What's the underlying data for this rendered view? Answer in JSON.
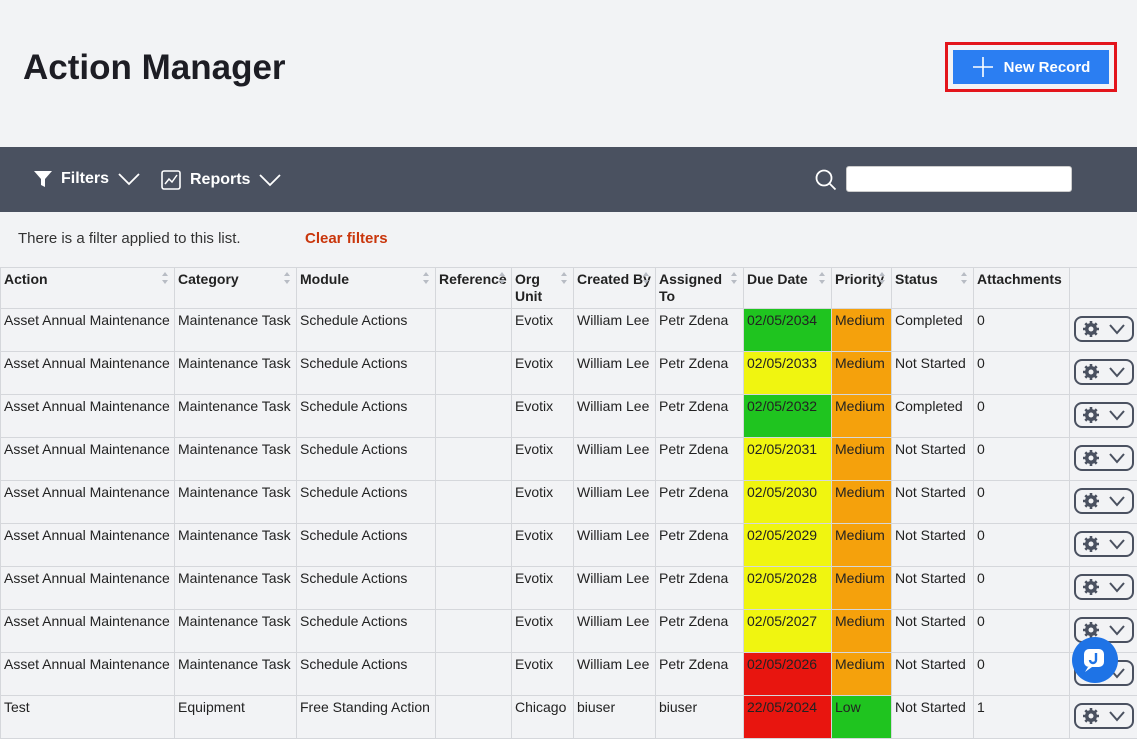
{
  "header": {
    "title": "Action Manager",
    "new_button": "New Record"
  },
  "toolbar": {
    "filters": "Filters",
    "reports": "Reports"
  },
  "filter_notice": {
    "text": "There is a filter applied to this list.",
    "clear": "Clear filters"
  },
  "table": {
    "columns": [
      "Action",
      "Category",
      "Module",
      "Reference",
      "Org Unit",
      "Created By",
      "Assigned To",
      "Due Date",
      "Priority",
      "Status",
      "Attachments"
    ],
    "rows": [
      [
        "Asset Annual Maintenance",
        "Maintenance Task",
        "Schedule Actions",
        null,
        "Evotix",
        "William Lee",
        "Petr Zdena",
        "02/05/2034",
        "Medium",
        "Completed",
        0
      ],
      [
        "Asset Annual Maintenance",
        "Maintenance Task",
        "Schedule Actions",
        null,
        "Evotix",
        "William Lee",
        "Petr Zdena",
        "02/05/2033",
        "Medium",
        "Not Started",
        0
      ],
      [
        "Asset Annual Maintenance",
        "Maintenance Task",
        "Schedule Actions",
        null,
        "Evotix",
        "William Lee",
        "Petr Zdena",
        "02/05/2032",
        "Medium",
        "Completed",
        0
      ],
      [
        "Asset Annual Maintenance",
        "Maintenance Task",
        "Schedule Actions",
        null,
        "Evotix",
        "William Lee",
        "Petr Zdena",
        "02/05/2031",
        "Medium",
        "Not Started",
        0
      ],
      [
        "Asset Annual Maintenance",
        "Maintenance Task",
        "Schedule Actions",
        null,
        "Evotix",
        "William Lee",
        "Petr Zdena",
        "02/05/2030",
        "Medium",
        "Not Started",
        0
      ],
      [
        "Asset Annual Maintenance",
        "Maintenance Task",
        "Schedule Actions",
        null,
        "Evotix",
        "William Lee",
        "Petr Zdena",
        "02/05/2029",
        "Medium",
        "Not Started",
        0
      ],
      [
        "Asset Annual Maintenance",
        "Maintenance Task",
        "Schedule Actions",
        null,
        "Evotix",
        "William Lee",
        "Petr Zdena",
        "02/05/2028",
        "Medium",
        "Not Started",
        0
      ],
      [
        "Asset Annual Maintenance",
        "Maintenance Task",
        "Schedule Actions",
        null,
        "Evotix",
        "William Lee",
        "Petr Zdena",
        "02/05/2027",
        "Medium",
        "Not Started",
        0
      ],
      [
        "Asset Annual Maintenance",
        "Maintenance Task",
        "Schedule Actions",
        null,
        "Evotix",
        "William Lee",
        "Petr Zdena",
        "02/05/2026",
        "Medium",
        "Not Started",
        0
      ],
      [
        "Test",
        "Equipment",
        "Free Standing Action",
        null,
        "Chicago",
        "biuser",
        "biuser",
        "22/05/2024",
        "Low",
        "Not Started",
        1
      ]
    ],
    "due_date_colors": [
      "#1fc41f",
      "#f0f510",
      "#1fc41f",
      "#f0f510",
      "#f0f510",
      "#f0f510",
      "#f0f510",
      "#f0f510",
      "#e8150f",
      "#e8150f"
    ],
    "priority_colors": [
      "#f5a10c",
      "#f5a10c",
      "#f5a10c",
      "#f5a10c",
      "#f5a10c",
      "#f5a10c",
      "#f5a10c",
      "#f5a10c",
      "#f5a10c",
      "#1fc41f"
    ]
  }
}
